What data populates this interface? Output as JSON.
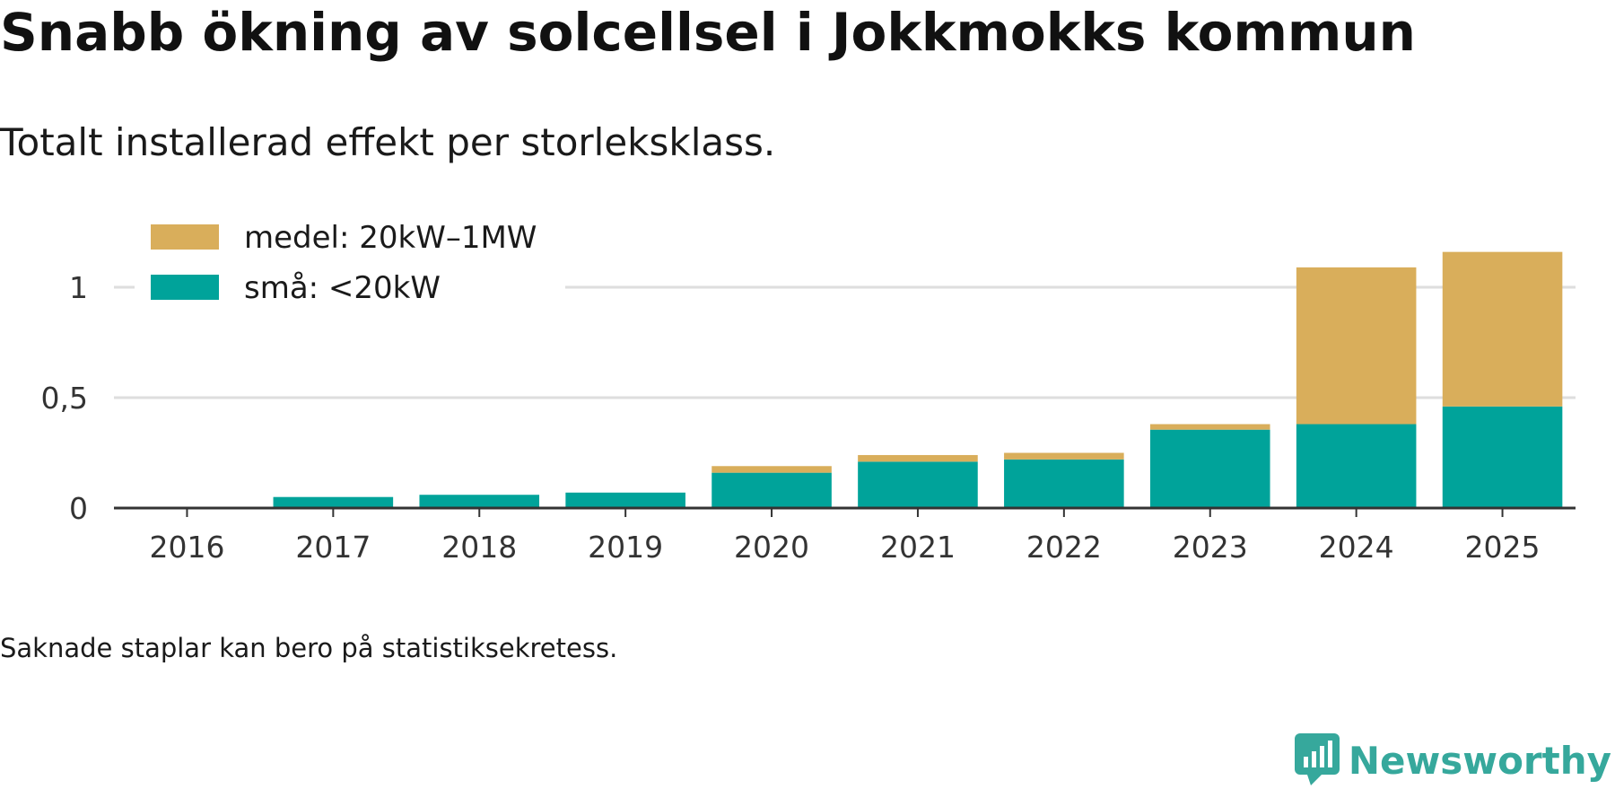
{
  "chart_data": {
    "type": "bar",
    "stacked": true,
    "title": "Snabb ökning av solcellsel i Jokkmokks kommun",
    "subtitle": "Totalt installerad effekt per storleksklass.",
    "categories": [
      "2016",
      "2017",
      "2018",
      "2019",
      "2020",
      "2021",
      "2022",
      "2023",
      "2024",
      "2025"
    ],
    "series": [
      {
        "name": "små: <20kW",
        "color": "#00a39a",
        "values": [
          0,
          0.05,
          0.06,
          0.07,
          0.16,
          0.21,
          0.22,
          0.355,
          0.38,
          0.46
        ]
      },
      {
        "name": "medel: 20kW–1MW",
        "color": "#d9ae5b",
        "values": [
          0,
          0,
          0,
          0,
          0.03,
          0.03,
          0.03,
          0.025,
          0.71,
          0.7
        ]
      }
    ],
    "legend_order": [
      "medel: 20kW–1MW",
      "små: <20kW"
    ],
    "legend_position": "top-left",
    "yticks": [
      {
        "value": 0,
        "label": "0"
      },
      {
        "value": 0.5,
        "label": "0,5"
      },
      {
        "value": 1,
        "label": "1"
      }
    ],
    "ylim": [
      0,
      1.2
    ],
    "xlabel": "",
    "ylabel": "",
    "grid": true
  },
  "note": "Saknade staplar kan bero på statistiksekretess.",
  "brand": {
    "name": "Newsworthy",
    "logo_icon": "newsworthy-logo-icon",
    "color": "#36a89c"
  }
}
